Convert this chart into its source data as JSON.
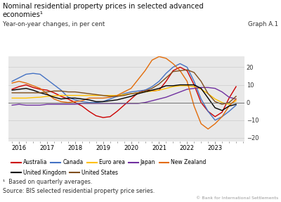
{
  "title_line1": "Nominal residential property prices in selected advanced",
  "title_line2": "economies¹",
  "subtitle_left": "Year-on-year changes, in per cent",
  "subtitle_right": "Graph A.1",
  "footnote1": "¹  Based on quarterly averages.",
  "footnote2": "Source: BIS selected residential property price series.",
  "copyright": "© Bank for International Settlements",
  "ylim": [
    -22,
    26
  ],
  "yticks": [
    -20,
    -10,
    0,
    10,
    20
  ],
  "bg_color": "#e8e8e8",
  "series": {
    "Australia": {
      "color": "#cc0000",
      "x": [
        2015.75,
        2016.0,
        2016.25,
        2016.5,
        2016.75,
        2017.0,
        2017.25,
        2017.5,
        2017.75,
        2018.0,
        2018.25,
        2018.5,
        2018.75,
        2019.0,
        2019.25,
        2019.5,
        2019.75,
        2020.0,
        2020.25,
        2020.5,
        2020.75,
        2021.0,
        2021.25,
        2021.5,
        2021.75,
        2022.0,
        2022.25,
        2022.5,
        2022.75,
        2023.0,
        2023.25,
        2023.5,
        2023.75
      ],
      "y": [
        7.5,
        9.0,
        10.0,
        8.5,
        7.5,
        7.0,
        5.5,
        3.5,
        2.0,
        0.0,
        -2.0,
        -5.0,
        -7.5,
        -8.5,
        -8.0,
        -5.0,
        -1.5,
        2.0,
        5.5,
        7.0,
        6.5,
        7.0,
        12.0,
        18.0,
        20.0,
        18.0,
        10.0,
        0.0,
        -5.0,
        -8.0,
        -5.5,
        2.5,
        9.0
      ]
    },
    "Canada": {
      "color": "#4472c4",
      "x": [
        2015.75,
        2016.0,
        2016.25,
        2016.5,
        2016.75,
        2017.0,
        2017.25,
        2017.5,
        2017.75,
        2018.0,
        2018.25,
        2018.5,
        2018.75,
        2019.0,
        2019.25,
        2019.5,
        2019.75,
        2020.0,
        2020.25,
        2020.5,
        2020.75,
        2021.0,
        2021.25,
        2021.5,
        2021.75,
        2022.0,
        2022.25,
        2022.5,
        2022.75,
        2023.0,
        2023.25,
        2023.5,
        2023.75
      ],
      "y": [
        12.0,
        14.0,
        16.0,
        16.5,
        16.0,
        13.0,
        10.0,
        7.0,
        3.0,
        1.5,
        0.5,
        0.0,
        0.0,
        0.5,
        2.0,
        3.5,
        5.0,
        6.0,
        6.5,
        7.0,
        9.0,
        12.0,
        16.5,
        20.0,
        22.0,
        20.0,
        12.0,
        2.0,
        -5.0,
        -10.0,
        -8.0,
        -5.0,
        -1.5
      ]
    },
    "Euro area": {
      "color": "#ffc000",
      "x": [
        2015.75,
        2016.0,
        2016.25,
        2016.5,
        2016.75,
        2017.0,
        2017.25,
        2017.5,
        2017.75,
        2018.0,
        2018.25,
        2018.5,
        2018.75,
        2019.0,
        2019.25,
        2019.5,
        2019.75,
        2020.0,
        2020.25,
        2020.5,
        2020.75,
        2021.0,
        2021.25,
        2021.5,
        2021.75,
        2022.0,
        2022.25,
        2022.5,
        2022.75,
        2023.0,
        2023.25,
        2023.5,
        2023.75
      ],
      "y": [
        2.5,
        2.5,
        2.5,
        2.8,
        3.0,
        3.5,
        3.8,
        4.0,
        4.0,
        4.0,
        4.0,
        4.0,
        4.0,
        4.0,
        4.0,
        4.0,
        4.5,
        5.0,
        5.5,
        6.0,
        6.5,
        7.0,
        8.0,
        9.0,
        9.5,
        9.5,
        9.0,
        7.5,
        5.0,
        2.0,
        0.0,
        -1.0,
        1.0
      ]
    },
    "Japan": {
      "color": "#7030a0",
      "x": [
        2015.75,
        2016.0,
        2016.25,
        2016.5,
        2016.75,
        2017.0,
        2017.25,
        2017.5,
        2017.75,
        2018.0,
        2018.25,
        2018.5,
        2018.75,
        2019.0,
        2019.25,
        2019.5,
        2019.75,
        2020.0,
        2020.25,
        2020.5,
        2020.75,
        2021.0,
        2021.25,
        2021.5,
        2021.75,
        2022.0,
        2022.25,
        2022.5,
        2022.75,
        2023.0,
        2023.25,
        2023.5,
        2023.75
      ],
      "y": [
        -1.5,
        -1.0,
        -1.5,
        -1.5,
        -1.5,
        -1.0,
        -1.0,
        -1.0,
        -1.0,
        -1.0,
        -0.5,
        -0.5,
        -0.5,
        -0.5,
        -0.5,
        -0.5,
        -0.5,
        -0.5,
        -0.5,
        0.0,
        1.0,
        2.0,
        3.0,
        4.5,
        6.0,
        7.5,
        8.0,
        8.5,
        8.5,
        8.0,
        6.0,
        3.0,
        2.0
      ]
    },
    "New Zealand": {
      "color": "#e36c09",
      "x": [
        2015.75,
        2016.0,
        2016.25,
        2016.5,
        2016.75,
        2017.0,
        2017.25,
        2017.5,
        2017.75,
        2018.0,
        2018.25,
        2018.5,
        2018.75,
        2019.0,
        2019.25,
        2019.5,
        2019.75,
        2020.0,
        2020.25,
        2020.5,
        2020.75,
        2021.0,
        2021.25,
        2021.5,
        2021.75,
        2022.0,
        2022.25,
        2022.5,
        2022.75,
        2023.0,
        2023.25,
        2023.5,
        2023.75
      ],
      "y": [
        11.0,
        12.0,
        11.0,
        9.5,
        8.0,
        5.0,
        2.0,
        0.5,
        0.0,
        0.5,
        1.0,
        2.5,
        2.5,
        2.5,
        3.0,
        4.0,
        6.0,
        8.0,
        13.0,
        18.0,
        24.0,
        26.0,
        25.0,
        22.0,
        18.0,
        12.0,
        -2.0,
        -12.0,
        -15.0,
        -12.0,
        -8.0,
        -2.0,
        2.0
      ]
    },
    "United Kingdom": {
      "color": "#000000",
      "x": [
        2015.75,
        2016.0,
        2016.25,
        2016.5,
        2016.75,
        2017.0,
        2017.25,
        2017.5,
        2017.75,
        2018.0,
        2018.25,
        2018.5,
        2018.75,
        2019.0,
        2019.25,
        2019.5,
        2019.75,
        2020.0,
        2020.25,
        2020.5,
        2020.75,
        2021.0,
        2021.25,
        2021.5,
        2021.75,
        2022.0,
        2022.25,
        2022.5,
        2022.75,
        2023.0,
        2023.25,
        2023.5,
        2023.75
      ],
      "y": [
        7.0,
        7.5,
        8.0,
        7.0,
        5.5,
        4.5,
        3.0,
        2.0,
        2.5,
        2.5,
        2.0,
        1.5,
        0.5,
        0.5,
        1.0,
        1.5,
        2.5,
        3.5,
        5.0,
        6.0,
        7.0,
        8.0,
        9.5,
        9.5,
        10.0,
        10.0,
        10.0,
        8.0,
        2.5,
        -3.0,
        -4.5,
        -2.0,
        -1.0
      ]
    },
    "United States": {
      "color": "#7f4f1e",
      "x": [
        2015.75,
        2016.0,
        2016.25,
        2016.5,
        2016.75,
        2017.0,
        2017.25,
        2017.5,
        2017.75,
        2018.0,
        2018.25,
        2018.5,
        2018.75,
        2019.0,
        2019.25,
        2019.5,
        2019.75,
        2020.0,
        2020.25,
        2020.5,
        2020.75,
        2021.0,
        2021.25,
        2021.5,
        2021.75,
        2022.0,
        2022.25,
        2022.5,
        2022.75,
        2023.0,
        2023.25,
        2023.5,
        2023.75
      ],
      "y": [
        5.5,
        5.5,
        5.5,
        5.5,
        5.5,
        6.0,
        6.5,
        6.5,
        6.0,
        6.0,
        5.5,
        5.0,
        4.5,
        4.0,
        3.5,
        3.5,
        4.0,
        5.0,
        5.5,
        6.5,
        8.0,
        10.5,
        14.0,
        17.5,
        18.0,
        18.5,
        17.0,
        12.0,
        5.0,
        0.5,
        -1.0,
        0.0,
        3.5
      ]
    }
  },
  "legend_row1": [
    "Australia",
    "Canada",
    "Euro area",
    "Japan",
    "New Zealand"
  ],
  "legend_row2": [
    "United Kingdom",
    "United States"
  ]
}
